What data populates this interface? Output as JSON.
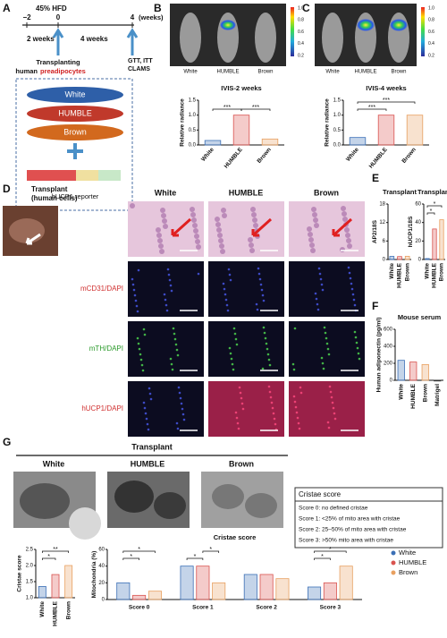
{
  "panel_labels": [
    "A",
    "B",
    "C",
    "D",
    "E",
    "F",
    "G"
  ],
  "timeline": {
    "diet": "45% HFD",
    "ticks": [
      "−2",
      "0",
      "4"
    ],
    "unit": "(weeks)",
    "periods": [
      "2 weeks",
      "4 weeks"
    ],
    "transplant": [
      "Transplanting",
      "human",
      "preadipocytes"
    ],
    "tests": [
      "GTT, ITT",
      "CLAMS"
    ]
  },
  "cells": [
    "White",
    "HUMBLE",
    "Brown"
  ],
  "reporter": "hUCP1 reporter",
  "imaging": [
    {
      "mice": [
        "White",
        "HUMBLE",
        "Brown"
      ],
      "scale": [
        "1.0",
        "0.8",
        "0.6",
        "0.4",
        "0.2"
      ]
    },
    {
      "mice": [
        "White",
        "HUMBLE",
        "Brown"
      ],
      "scale": [
        "1.0",
        "0.8",
        "0.6",
        "0.4",
        "0.2"
      ]
    }
  ],
  "histology": {
    "title": [
      "Transplant",
      "(human cells)"
    ],
    "columns": [
      "White",
      "HUMBLE",
      "Brown"
    ],
    "rows": [
      "mCD31/DAPI",
      "mTH/DAPI",
      "hUCP1/DAPI"
    ]
  },
  "em": {
    "title": "Transplant",
    "columns": [
      "White",
      "HUMBLE",
      "Brown"
    ]
  },
  "cristae_table": {
    "title": "Cristae score",
    "rows": [
      "Score 0: no defined cristae",
      "Score 1: <25% of mito area with cristae",
      "Score 2: 25–50% of mito area with cristae",
      "Score 3: >50% mito area with cristae"
    ]
  },
  "chart_data": [
    {
      "type": "bar",
      "title": "IVIS-2 weeks",
      "y_label": "Relative radiance",
      "categories": [
        "White",
        "HUMBLE",
        "Brown"
      ],
      "values": [
        0.15,
        1.0,
        0.2
      ],
      "colors": [
        "#3b6fb6",
        "#d9534f",
        "#e8a060"
      ],
      "ylim": [
        0,
        1.5
      ],
      "yticks": [
        {
          "value": 0,
          "label": "0.0"
        },
        0.5,
        {
          "value": 1,
          "label": "1.0"
        },
        1.5
      ],
      "annotations": [
        "***",
        "***"
      ]
    },
    {
      "type": "bar",
      "title": "IVIS-4 weeks",
      "y_label": "Relative radiance",
      "categories": [
        "White",
        "HUMBLE",
        "Brown"
      ],
      "values": [
        0.25,
        1.0,
        1.0
      ],
      "colors": [
        "#3b6fb6",
        "#d9534f",
        "#e8a060"
      ],
      "ylim": [
        0,
        1.5
      ],
      "yticks": [
        {
          "value": 0,
          "label": "0.0"
        },
        0.5,
        {
          "value": 1,
          "label": "1.0"
        },
        1.5
      ],
      "annotations": [
        "***",
        "***"
      ]
    },
    {
      "type": "bar",
      "title": "Transplant",
      "y_label": "AP2/18S",
      "categories": [
        "White",
        "HUMBLE",
        "Brown"
      ],
      "values": [
        1.0,
        0.95,
        1.05
      ],
      "colors": [
        "#3b6fb6",
        "#d9534f",
        "#e8a060"
      ],
      "ylim": [
        0,
        18
      ],
      "yticks": [
        0,
        6,
        12,
        18
      ],
      "annotations": []
    },
    {
      "type": "bar",
      "title": "Transplant",
      "y_label": "hUCP1/18S",
      "categories": [
        "White",
        "HUMBLE",
        "Brown"
      ],
      "values": [
        1,
        33,
        43
      ],
      "colors": [
        "#3b6fb6",
        "#d9534f",
        "#e8a060"
      ],
      "ylim": [
        0,
        60
      ],
      "yticks": [
        0,
        20,
        40,
        60
      ],
      "annotations": [
        "*",
        "*"
      ]
    },
    {
      "type": "bar",
      "title": "Mouse serum",
      "y_label": "Human adiponectin (pg/ml)",
      "categories": [
        "White",
        "HUMBLE",
        "Brown",
        "Matrigel"
      ],
      "values": [
        235,
        215,
        185,
        0
      ],
      "colors": [
        "#3b6fb6",
        "#d9534f",
        "#e8a060",
        "#333333"
      ],
      "ylim": [
        0,
        600
      ],
      "yticks": [
        0,
        200,
        400,
        600
      ],
      "annotations": []
    },
    {
      "type": "bar",
      "y_label": "Cristae score",
      "categories": [
        "White",
        "HUMBLE",
        "Brown"
      ],
      "values": [
        1.35,
        1.72,
        2.0
      ],
      "colors": [
        "#3b6fb6",
        "#d9534f",
        "#e8a060"
      ],
      "ylim": [
        1,
        2.5
      ],
      "yticks": [
        {
          "value": 1,
          "label": "1.0"
        },
        1.5,
        {
          "value": 2,
          "label": "2.0"
        },
        2.5
      ],
      "annotations": [
        "*",
        "**"
      ]
    },
    {
      "type": "grouped_bar",
      "title": "Cristae score",
      "y_label": "Mitochondria (%)",
      "categories": [
        "Score 0",
        "Score 1",
        "Score 2",
        "Score 3"
      ],
      "series": [
        {
          "name": "White",
          "color": "#3b6fb6",
          "values": [
            20,
            40,
            30,
            15
          ]
        },
        {
          "name": "HUMBLE",
          "color": "#d9534f",
          "values": [
            5,
            40,
            30,
            20
          ]
        },
        {
          "name": "Brown",
          "color": "#e8a060",
          "values": [
            10,
            20,
            25,
            40
          ]
        }
      ],
      "ylim": [
        0,
        60
      ],
      "yticks": [
        0,
        20,
        40,
        60
      ],
      "annotations": [
        "*",
        "*",
        "*",
        "*",
        "*",
        "*"
      ]
    }
  ]
}
